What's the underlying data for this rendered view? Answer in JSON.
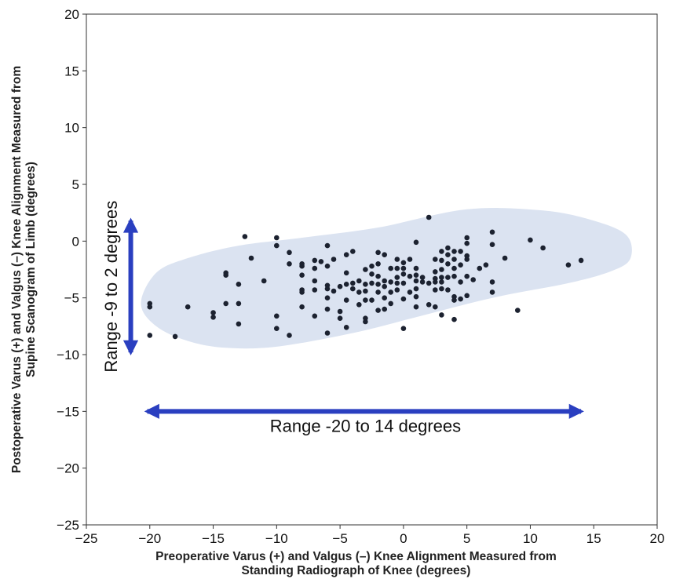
{
  "chart_data": {
    "type": "scatter",
    "xlabel_lines": [
      "Preoperative Varus (+) and Valgus (–) Knee Alignment Measured from",
      "Standing Radiograph of Knee (degrees)"
    ],
    "ylabel_lines": [
      "Postoperative Varus (+) and Valgus (–) Knee Alignment Measured from",
      "Supine Scanogram of Limb (degrees)"
    ],
    "xlim": [
      -25,
      20
    ],
    "ylim": [
      -25,
      20
    ],
    "xticks": [
      -25,
      -20,
      -15,
      -10,
      -5,
      0,
      5,
      10,
      15,
      20
    ],
    "yticks": [
      -25,
      -20,
      -15,
      -10,
      -5,
      0,
      5,
      10,
      15,
      20
    ],
    "x_tick_labels": [
      "−25",
      "−20",
      "−15",
      "−10",
      "−5",
      "0",
      "5",
      "10",
      "15",
      "20"
    ],
    "y_tick_labels": [
      "−25",
      "−20",
      "−15",
      "−10",
      "−5",
      "0",
      "5",
      "10",
      "15",
      "20"
    ],
    "grid": false,
    "annotations": {
      "vertical_range": {
        "text": "Range -9 to 2 degrees",
        "x": -21.5,
        "y_from": -9.8,
        "y_to": 1.8
      },
      "horizontal_range": {
        "text": "Range -20 to 14 degrees",
        "y": -15,
        "x_from": -20.2,
        "x_to": 14.0,
        "text_x": -3,
        "text_y": -16.8
      }
    },
    "ellipse": {
      "color": "#dbe3f1",
      "polygon": [
        [
          -20.7,
          -5.5
        ],
        [
          -19.5,
          -2.8
        ],
        [
          -17,
          -1.5
        ],
        [
          -13,
          -0.4
        ],
        [
          -8,
          0.3
        ],
        [
          -2,
          1.2
        ],
        [
          5,
          2.8
        ],
        [
          11,
          2.7
        ],
        [
          15,
          1.8
        ],
        [
          17.6,
          0.5
        ],
        [
          17.9,
          -1.5
        ],
        [
          16.5,
          -2.6
        ],
        [
          13,
          -3.7
        ],
        [
          7,
          -5.0
        ],
        [
          1,
          -6.7
        ],
        [
          -4,
          -8.1
        ],
        [
          -10,
          -9.3
        ],
        [
          -14,
          -9.4
        ],
        [
          -17,
          -8.8
        ],
        [
          -19.5,
          -7.5
        ]
      ]
    },
    "arrow_color": "#2a3fc0",
    "point_color": "#1c2230",
    "points": [
      [
        -20,
        -5.5
      ],
      [
        -20,
        -5.8
      ],
      [
        -20,
        -8.3
      ],
      [
        -18,
        -8.4
      ],
      [
        -17,
        -5.8
      ],
      [
        -15,
        -6.3
      ],
      [
        -15,
        -6.7
      ],
      [
        -14,
        -2.8
      ],
      [
        -14,
        -3.0
      ],
      [
        -14,
        -5.5
      ],
      [
        -13,
        -3.8
      ],
      [
        -13,
        -5.5
      ],
      [
        -13,
        -7.3
      ],
      [
        -12.5,
        0.4
      ],
      [
        -12,
        -1.5
      ],
      [
        -11,
        -3.5
      ],
      [
        -10,
        0.3
      ],
      [
        -10,
        -0.4
      ],
      [
        -10,
        -6.6
      ],
      [
        -10,
        -7.7
      ],
      [
        -9,
        -1.0
      ],
      [
        -9,
        -2.0
      ],
      [
        -9,
        -8.3
      ],
      [
        -8,
        -2.0
      ],
      [
        -8,
        -2.2
      ],
      [
        -8,
        -3.0
      ],
      [
        -8,
        -4.3
      ],
      [
        -8,
        -4.5
      ],
      [
        -8,
        -5.8
      ],
      [
        -7,
        -1.7
      ],
      [
        -7,
        -2.4
      ],
      [
        -7,
        -3.5
      ],
      [
        -7,
        -4.3
      ],
      [
        -7,
        -6.6
      ],
      [
        -6.5,
        -1.8
      ],
      [
        -6,
        -0.4
      ],
      [
        -6,
        -2.2
      ],
      [
        -6,
        -3.9
      ],
      [
        -6,
        -4.2
      ],
      [
        -6,
        -5.0
      ],
      [
        -6,
        -6.0
      ],
      [
        -6,
        -8.1
      ],
      [
        -5.5,
        -1.6
      ],
      [
        -5.5,
        -4.4
      ],
      [
        -5,
        -4.0
      ],
      [
        -5,
        -6.2
      ],
      [
        -5,
        -6.8
      ],
      [
        -4.5,
        -1.2
      ],
      [
        -4.5,
        -2.8
      ],
      [
        -4.5,
        -3.8
      ],
      [
        -4.5,
        -5.2
      ],
      [
        -4.5,
        -7.6
      ],
      [
        -4,
        -0.9
      ],
      [
        -4,
        -3.7
      ],
      [
        -4,
        -4.2
      ],
      [
        -3.5,
        -3.5
      ],
      [
        -3.5,
        -4.5
      ],
      [
        -3.5,
        -5.6
      ],
      [
        -3,
        -2.5
      ],
      [
        -3,
        -3.8
      ],
      [
        -3,
        -4.4
      ],
      [
        -3,
        -5.2
      ],
      [
        -3,
        -6.8
      ],
      [
        -3,
        -7.1
      ],
      [
        -2.5,
        -2.2
      ],
      [
        -2.5,
        -2.9
      ],
      [
        -2.5,
        -3.7
      ],
      [
        -2.5,
        -5.2
      ],
      [
        -2,
        -1.0
      ],
      [
        -2,
        -2.0
      ],
      [
        -2,
        -3.1
      ],
      [
        -2,
        -3.8
      ],
      [
        -2,
        -4.5
      ],
      [
        -2,
        -6.1
      ],
      [
        -1.5,
        -1.2
      ],
      [
        -1.5,
        -3.5
      ],
      [
        -1.5,
        -4.0
      ],
      [
        -1.5,
        -5.0
      ],
      [
        -1.5,
        -6.0
      ],
      [
        -1,
        -2.4
      ],
      [
        -1,
        -3.6
      ],
      [
        -1,
        -4.5
      ],
      [
        -1,
        -5.5
      ],
      [
        -0.5,
        -1.6
      ],
      [
        -0.5,
        -2.4
      ],
      [
        -0.5,
        -3.2
      ],
      [
        -0.5,
        -3.7
      ],
      [
        -0.5,
        -4.3
      ],
      [
        0,
        -1.9
      ],
      [
        0,
        -2.4
      ],
      [
        0,
        -2.9
      ],
      [
        0,
        -3.7
      ],
      [
        0,
        -5.1
      ],
      [
        0,
        -7.7
      ],
      [
        0.5,
        -1.6
      ],
      [
        0.5,
        -3.1
      ],
      [
        0.5,
        -4.5
      ],
      [
        1,
        -0.1
      ],
      [
        1,
        -2.4
      ],
      [
        1,
        -3.0
      ],
      [
        1,
        -3.5
      ],
      [
        1,
        -4.2
      ],
      [
        1,
        -4.9
      ],
      [
        1,
        -5.8
      ],
      [
        1.5,
        -3.2
      ],
      [
        1.5,
        -3.6
      ],
      [
        2,
        2.1
      ],
      [
        2,
        -3.7
      ],
      [
        2,
        -5.6
      ],
      [
        2.5,
        -1.6
      ],
      [
        2.5,
        -2.7
      ],
      [
        2.5,
        -3.3
      ],
      [
        2.5,
        -3.6
      ],
      [
        2.5,
        -4.3
      ],
      [
        2.5,
        -5.8
      ],
      [
        3,
        -0.9
      ],
      [
        3,
        -1.7
      ],
      [
        3,
        -2.5
      ],
      [
        3,
        -3.2
      ],
      [
        3,
        -3.6
      ],
      [
        3,
        -4.2
      ],
      [
        3,
        -6.5
      ],
      [
        3.5,
        -0.6
      ],
      [
        3.5,
        -1.2
      ],
      [
        3.5,
        -2.0
      ],
      [
        3.5,
        -3.2
      ],
      [
        3.5,
        -4.3
      ],
      [
        4,
        -0.9
      ],
      [
        4,
        -1.6
      ],
      [
        4,
        -2.4
      ],
      [
        4,
        -3.1
      ],
      [
        4,
        -4.9
      ],
      [
        4,
        -5.2
      ],
      [
        4,
        -6.9
      ],
      [
        4.5,
        -0.9
      ],
      [
        4.5,
        -2.1
      ],
      [
        4.5,
        -3.6
      ],
      [
        4.5,
        -5.1
      ],
      [
        5,
        0.3
      ],
      [
        5,
        -0.2
      ],
      [
        5,
        -1.3
      ],
      [
        5,
        -1.6
      ],
      [
        5,
        -3.1
      ],
      [
        5,
        -4.8
      ],
      [
        5.5,
        -3.4
      ],
      [
        6,
        -2.4
      ],
      [
        6.5,
        -2.1
      ],
      [
        7,
        0.8
      ],
      [
        7,
        -0.3
      ],
      [
        7,
        -3.6
      ],
      [
        7,
        -4.5
      ],
      [
        8,
        -1.5
      ],
      [
        9,
        -6.1
      ],
      [
        10,
        0.1
      ],
      [
        11,
        -0.6
      ],
      [
        13,
        -2.1
      ],
      [
        14,
        -1.7
      ]
    ]
  }
}
